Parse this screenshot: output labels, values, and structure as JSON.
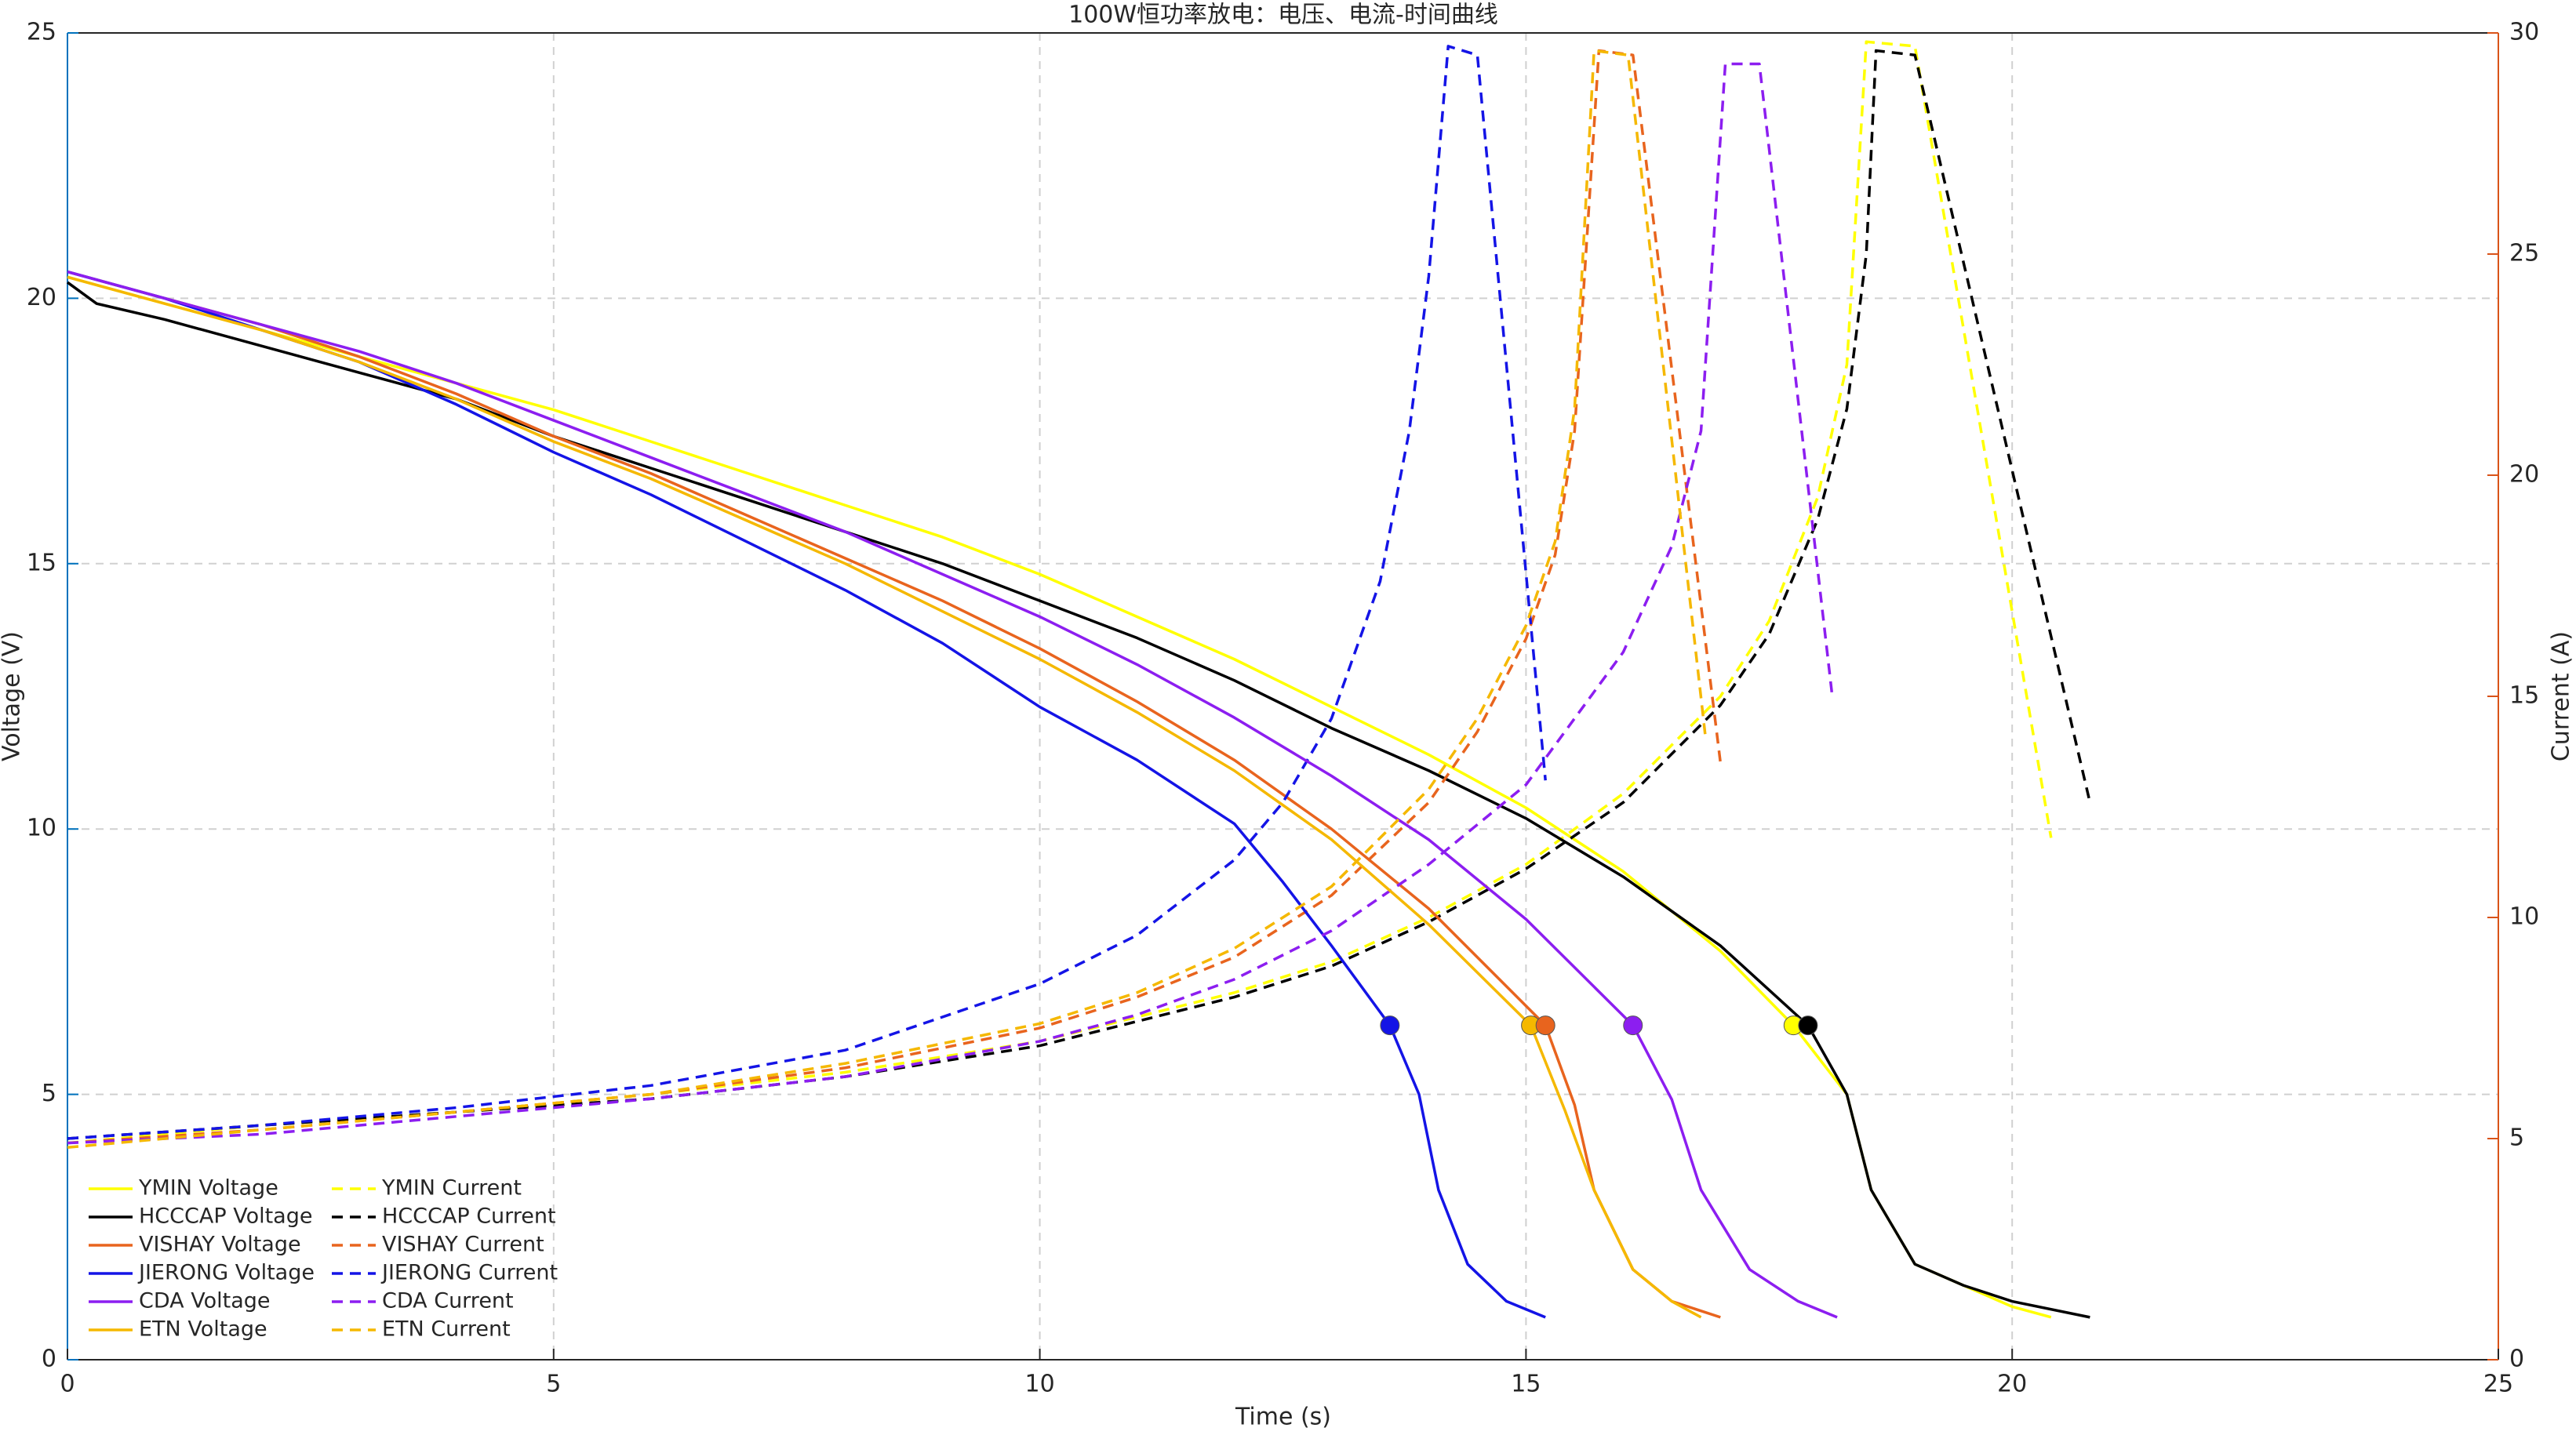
{
  "chart_data": {
    "type": "line",
    "title": "100W恒功率放电：电压、电流-时间曲线",
    "xlabel": "Time (s)",
    "ylabel": "Voltage (V)",
    "y2label": "Current (A)",
    "xlim": [
      0,
      25
    ],
    "xticks": [
      0,
      5,
      10,
      15,
      20,
      25
    ],
    "ylim": [
      0,
      25
    ],
    "yticks": [
      0,
      5,
      10,
      15,
      20,
      25
    ],
    "y2lim": [
      0,
      30
    ],
    "y2ticks": [
      0,
      5,
      10,
      15,
      20,
      25,
      30
    ],
    "ycolor": "#0072bd",
    "y2color": "#d95319",
    "grid": true,
    "legend": "lower left",
    "series": [
      {
        "name": "YMIN Voltage",
        "color": "#ffff00",
        "linestyle": "solid",
        "x": [
          0,
          1,
          2,
          3,
          4,
          5,
          6,
          7,
          8,
          9,
          10,
          11,
          12,
          13,
          14,
          15,
          16,
          17,
          17.75,
          18.3,
          18.55,
          19,
          19.5,
          20,
          20.4
        ],
        "values": [
          20.4,
          19.9,
          19.4,
          18.9,
          18.4,
          17.9,
          17.3,
          16.7,
          16.1,
          15.5,
          14.8,
          14.0,
          13.2,
          12.3,
          11.4,
          10.4,
          9.2,
          7.7,
          6.3,
          5.0,
          3.2,
          1.8,
          1.4,
          1.0,
          0.8
        ]
      },
      {
        "name": "YMIN Current",
        "color": "#ffff00",
        "linestyle": "dashed",
        "axis": "y2",
        "x": [
          0,
          2,
          4,
          6,
          8,
          10,
          12,
          13,
          14,
          15,
          16,
          17,
          17.5,
          18,
          18.3,
          18.5,
          19,
          20.4
        ],
        "values": [
          4.9,
          5.3,
          5.6,
          6.0,
          6.5,
          7.2,
          8.3,
          9.0,
          10.0,
          11.2,
          12.8,
          15.0,
          16.7,
          19.5,
          22.5,
          29.8,
          29.7,
          11.8
        ]
      },
      {
        "name": "HCCCAP Voltage",
        "color": "#000000",
        "linestyle": "solid",
        "x": [
          0,
          0.3,
          1,
          2,
          3,
          4,
          5,
          6,
          7,
          8,
          9,
          10,
          11,
          12,
          13,
          14,
          15,
          16,
          17,
          17.9,
          18.3,
          18.55,
          19,
          19.5,
          20,
          20.8
        ],
        "values": [
          20.3,
          19.9,
          19.6,
          19.1,
          18.6,
          18.1,
          17.4,
          16.8,
          16.2,
          15.6,
          15.0,
          14.3,
          13.6,
          12.8,
          11.9,
          11.1,
          10.2,
          9.1,
          7.8,
          6.3,
          5.0,
          3.2,
          1.8,
          1.4,
          1.1,
          0.8
        ]
      },
      {
        "name": "HCCCAP Current",
        "color": "#000000",
        "linestyle": "dashed",
        "axis": "y2",
        "x": [
          0,
          2,
          4,
          6,
          8,
          10,
          12,
          13,
          14,
          15,
          16,
          17,
          17.5,
          18,
          18.3,
          18.5,
          18.6,
          19,
          20.8
        ],
        "values": [
          5.0,
          5.3,
          5.6,
          5.9,
          6.4,
          7.1,
          8.2,
          8.9,
          9.9,
          11.1,
          12.6,
          14.8,
          16.4,
          19.0,
          21.5,
          25.0,
          29.6,
          29.5,
          12.6
        ]
      },
      {
        "name": "VISHAY Voltage",
        "color": "#e8641e",
        "linestyle": "solid",
        "x": [
          0,
          1,
          2,
          3,
          4,
          5,
          6,
          7,
          8,
          9,
          10,
          11,
          12,
          13,
          14,
          15.2,
          15.5,
          15.7,
          16.1,
          16.5,
          17.0
        ],
        "values": [
          20.5,
          20.0,
          19.5,
          18.9,
          18.2,
          17.4,
          16.7,
          15.9,
          15.1,
          14.3,
          13.4,
          12.4,
          11.3,
          10.0,
          8.5,
          6.3,
          4.8,
          3.2,
          1.7,
          1.1,
          0.8
        ]
      },
      {
        "name": "VISHAY Current",
        "color": "#e8641e",
        "linestyle": "dashed",
        "axis": "y2",
        "x": [
          0,
          2,
          4,
          6,
          8,
          10,
          11,
          12,
          13,
          14,
          14.5,
          15,
          15.3,
          15.5,
          15.75,
          16.1,
          17.0
        ],
        "values": [
          4.9,
          5.2,
          5.6,
          6.0,
          6.6,
          7.5,
          8.2,
          9.1,
          10.5,
          12.6,
          14.2,
          16.3,
          18.2,
          21.0,
          29.6,
          29.5,
          13.5
        ]
      },
      {
        "name": "JIERONG Voltage",
        "color": "#1414e6",
        "linestyle": "solid",
        "x": [
          0,
          1,
          2,
          3,
          4,
          5,
          6,
          7,
          8,
          9,
          10,
          11,
          12,
          12.5,
          13,
          13.6,
          13.9,
          14.1,
          14.4,
          14.8,
          15.2
        ],
        "values": [
          20.5,
          20.0,
          19.4,
          18.8,
          18.0,
          17.1,
          16.3,
          15.4,
          14.5,
          13.5,
          12.3,
          11.3,
          10.1,
          9.0,
          7.8,
          6.3,
          5.0,
          3.2,
          1.8,
          1.1,
          0.8
        ]
      },
      {
        "name": "JIERONG Current",
        "color": "#1414e6",
        "linestyle": "dashed",
        "axis": "y2",
        "x": [
          0,
          2,
          4,
          6,
          8,
          10,
          11,
          12,
          12.5,
          13,
          13.5,
          13.8,
          14.0,
          14.2,
          14.5,
          15.2
        ],
        "values": [
          5.0,
          5.3,
          5.7,
          6.2,
          7.0,
          8.5,
          9.6,
          11.3,
          12.6,
          14.5,
          17.6,
          21.0,
          24.5,
          29.7,
          29.5,
          13.1
        ]
      },
      {
        "name": "CDA Voltage",
        "color": "#8c1ef0",
        "linestyle": "solid",
        "x": [
          0,
          1,
          2,
          3,
          4,
          5,
          6,
          7,
          8,
          9,
          10,
          11,
          12,
          13,
          14,
          15,
          16.1,
          16.5,
          16.8,
          17.3,
          17.8,
          18.2
        ],
        "values": [
          20.5,
          20.0,
          19.5,
          19.0,
          18.4,
          17.7,
          17.0,
          16.3,
          15.6,
          14.8,
          14.0,
          13.1,
          12.1,
          11.0,
          9.8,
          8.3,
          6.3,
          4.9,
          3.2,
          1.7,
          1.1,
          0.8
        ]
      },
      {
        "name": "CDA Current",
        "color": "#8c1ef0",
        "linestyle": "dashed",
        "axis": "y2",
        "x": [
          0,
          2,
          4,
          6,
          8,
          10,
          11,
          12,
          13,
          14,
          15,
          16,
          16.5,
          16.8,
          17.05,
          17.4,
          18.15
        ],
        "values": [
          4.9,
          5.1,
          5.5,
          5.9,
          6.4,
          7.2,
          7.8,
          8.6,
          9.7,
          11.2,
          13.0,
          16.0,
          18.4,
          21.0,
          29.3,
          29.3,
          15.0
        ]
      },
      {
        "name": "ETN Voltage",
        "color": "#f5b800",
        "linestyle": "solid",
        "x": [
          0,
          1,
          2,
          3,
          4,
          5,
          6,
          7,
          8,
          9,
          10,
          11,
          12,
          13,
          14,
          15.05,
          15.4,
          15.7,
          16.1,
          16.5,
          16.8
        ],
        "values": [
          20.4,
          19.9,
          19.4,
          18.8,
          18.1,
          17.3,
          16.6,
          15.8,
          15.0,
          14.1,
          13.2,
          12.2,
          11.1,
          9.8,
          8.2,
          6.3,
          4.7,
          3.2,
          1.7,
          1.1,
          0.8
        ]
      },
      {
        "name": "ETN Current",
        "color": "#f5b800",
        "linestyle": "dashed",
        "axis": "y2",
        "x": [
          0,
          2,
          4,
          6,
          8,
          10,
          11,
          12,
          13,
          14,
          14.5,
          15,
          15.3,
          15.5,
          15.7,
          16.05,
          16.85
        ],
        "values": [
          4.8,
          5.2,
          5.6,
          6.0,
          6.7,
          7.6,
          8.3,
          9.3,
          10.7,
          12.9,
          14.5,
          16.6,
          18.5,
          21.5,
          29.6,
          29.5,
          14.0
        ]
      }
    ],
    "markers": {
      "x": [
        13.6,
        15.05,
        15.2,
        16.1,
        17.75,
        17.9
      ],
      "values": [
        6.3,
        6.3,
        6.3,
        6.3,
        6.3,
        6.3
      ],
      "colors": [
        "#1414e6",
        "#f5b800",
        "#e8641e",
        "#8c1ef0",
        "#ffff00",
        "#000000"
      ]
    }
  }
}
